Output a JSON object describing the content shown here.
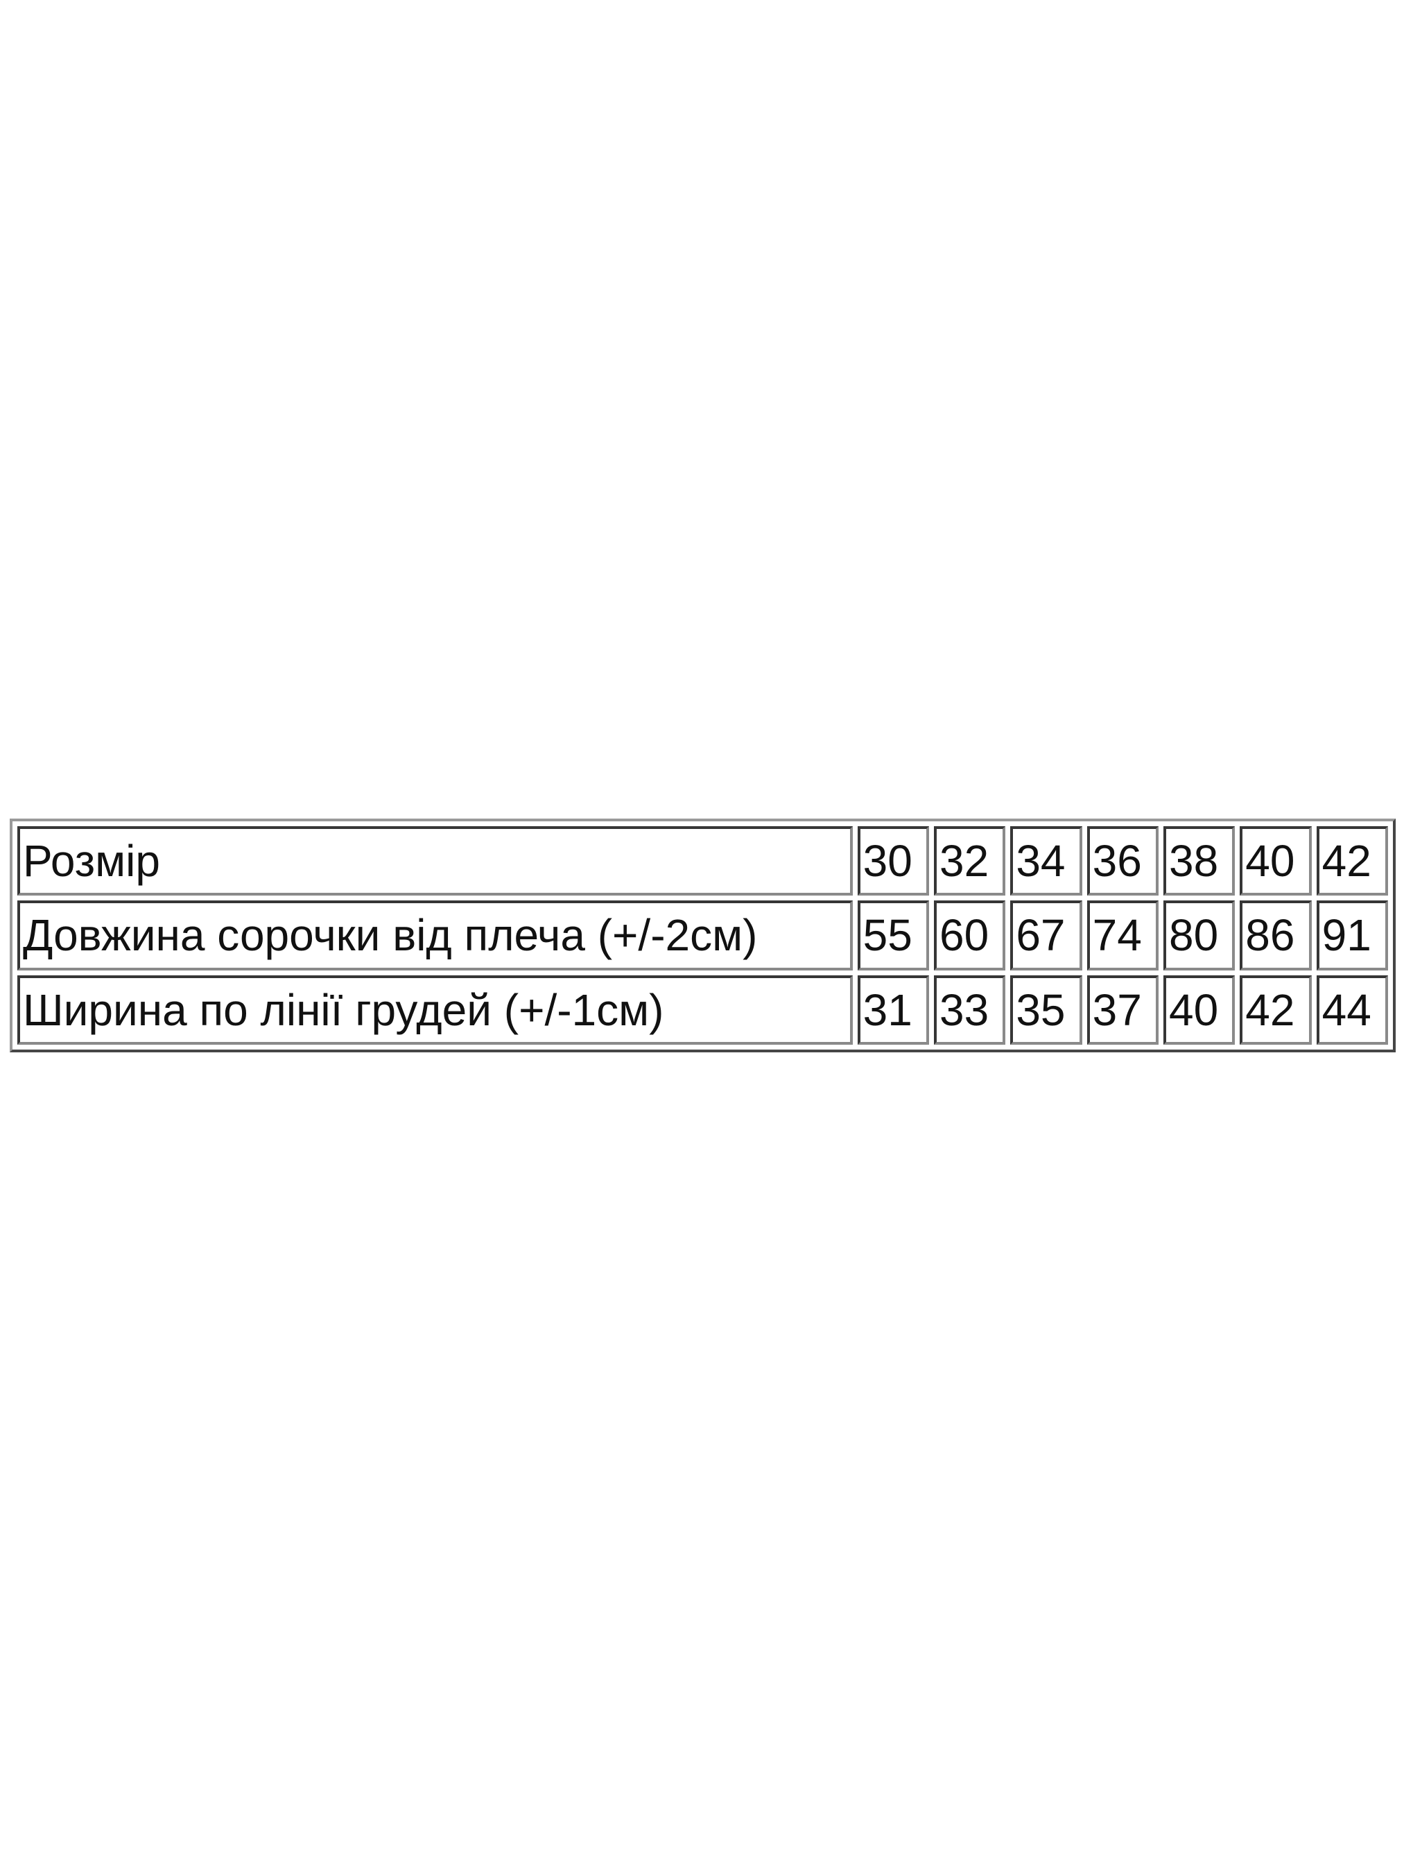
{
  "table": {
    "rows": [
      {
        "label": "Розмір",
        "values": [
          "30",
          "32",
          "34",
          "36",
          "38",
          "40",
          "42"
        ]
      },
      {
        "label": "Довжина сорочки від плеча (+/-2см)",
        "values": [
          "55",
          "60",
          "67",
          "74",
          "80",
          "86",
          "91"
        ]
      },
      {
        "label": "Ширина по лінії грудей (+/-1см)",
        "values": [
          "31",
          "33",
          "35",
          "37",
          "40",
          "42",
          "44"
        ]
      }
    ]
  }
}
